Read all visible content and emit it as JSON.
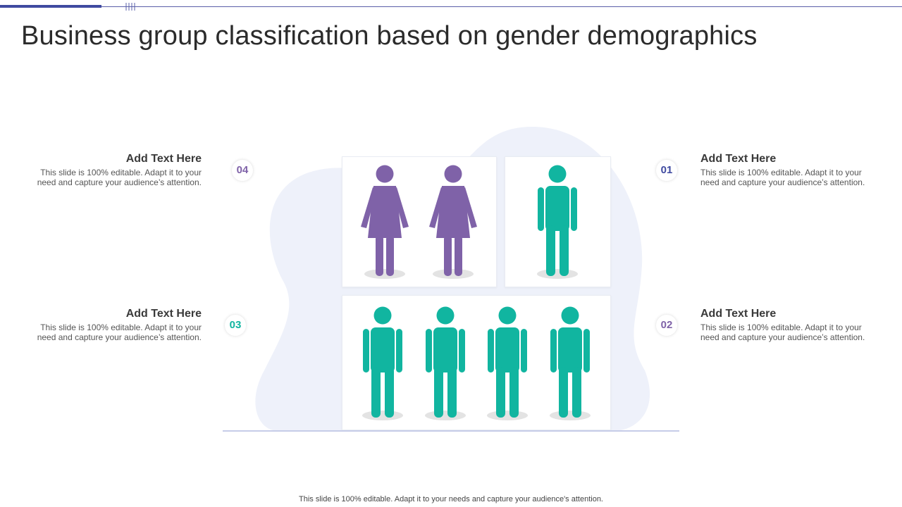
{
  "title": "Business group classification based on gender demographics",
  "colors": {
    "female": "#7f62a8",
    "male": "#11b5a0",
    "blob": "#eef1fa",
    "shadow": "#e3e3e3",
    "badge_01": "#3f4aa0",
    "badge_02": "#7f62a8",
    "badge_03": "#11b5a0",
    "badge_04": "#7f62a8"
  },
  "groups": [
    {
      "icon": "female-figure-icon",
      "count": 2
    },
    {
      "icon": "male-figure-icon",
      "count": 1
    },
    {
      "icon": "male-figure-icon",
      "count": 4
    }
  ],
  "items": {
    "i04": {
      "number": "04",
      "heading": "Add  Text Here",
      "body": "This slide is 100% editable. Adapt it to your need and capture your audience’s attention."
    },
    "i03": {
      "number": "03",
      "heading": "Add  Text Here",
      "body": "This slide is 100% editable. Adapt it to your need and capture your audience’s attention."
    },
    "i01": {
      "number": "01",
      "heading": "Add  Text Here",
      "body": "This slide is 100% editable. Adapt it to your need and capture your audience’s attention."
    },
    "i02": {
      "number": "02",
      "heading": "Add  Text Here",
      "body": "This slide is 100% editable. Adapt it to your need and capture your audience’s attention."
    }
  },
  "footer": "This slide is 100% editable.  Adapt it to your needs and capture your audience's attention."
}
